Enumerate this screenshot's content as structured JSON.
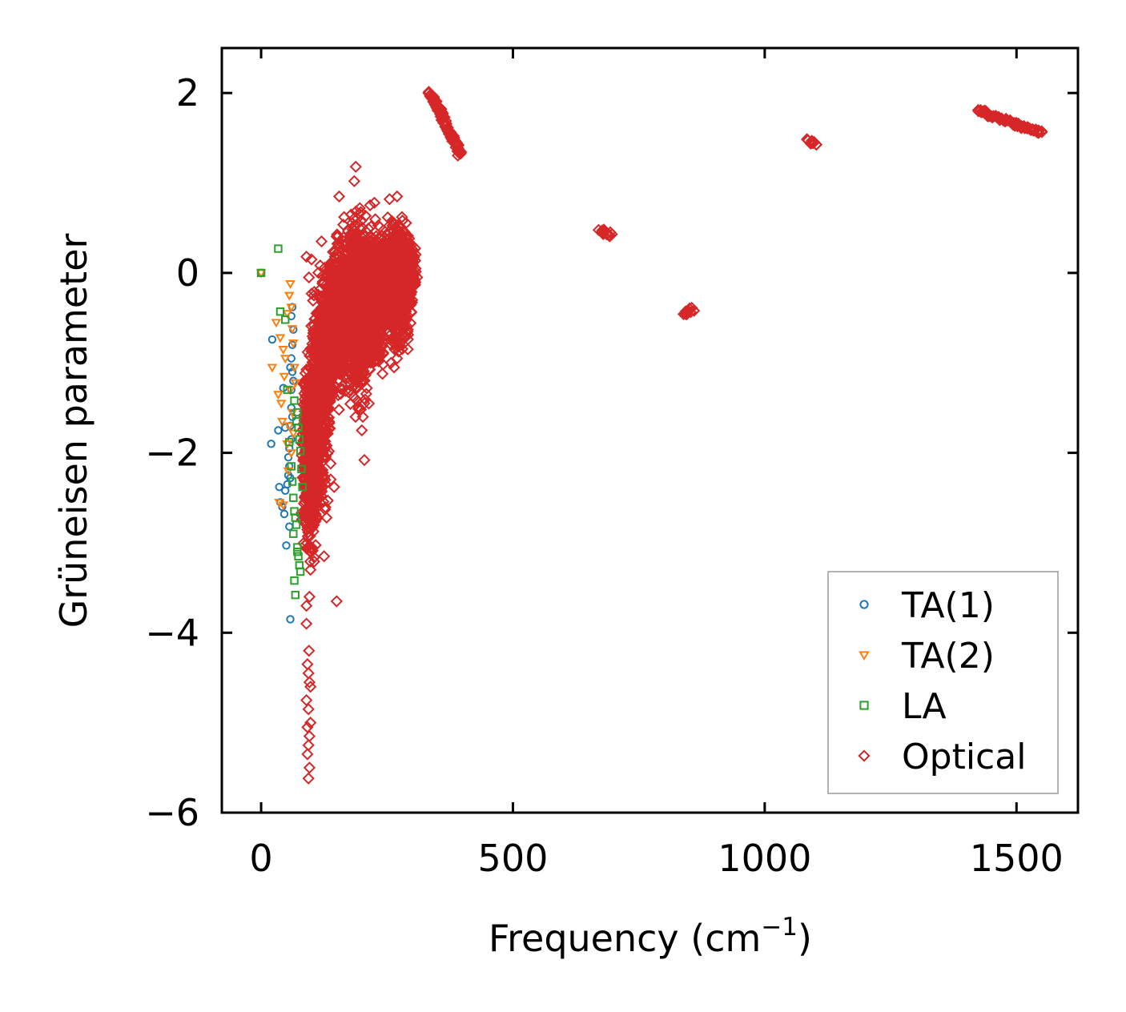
{
  "chart_data": {
    "type": "scatter",
    "title": "",
    "xlabel": "Frequency (cm",
    "xlabel_sup": "−1",
    "xlabel_end": ")",
    "ylabel": "Grüneisen parameter",
    "xlim": [
      -78,
      1622
    ],
    "ylim": [
      -6.0,
      2.5
    ],
    "x_ticks": [
      {
        "value": 0,
        "label": "0"
      },
      {
        "value": 500,
        "label": "500"
      },
      {
        "value": 1000,
        "label": "1000"
      },
      {
        "value": 1500,
        "label": "1500"
      }
    ],
    "y_ticks": [
      {
        "value": 2,
        "label": "2"
      },
      {
        "value": 0,
        "label": "0"
      },
      {
        "value": -2,
        "label": "−2"
      },
      {
        "value": -4,
        "label": "−4"
      },
      {
        "value": -6,
        "label": "−6"
      }
    ],
    "legend_position": "lower-right",
    "series": [
      {
        "name": "TA(1)",
        "marker": "circle",
        "color": "#1f77b4",
        "points": [
          [
            0,
            0.0
          ],
          [
            22,
            -0.74
          ],
          [
            20,
            -1.9
          ],
          [
            34,
            -1.75
          ],
          [
            36,
            -2.38
          ],
          [
            38,
            -2.55
          ],
          [
            42,
            -2.6
          ],
          [
            46,
            -2.68
          ],
          [
            48,
            -2.42
          ],
          [
            50,
            -3.03
          ],
          [
            52,
            -2.35
          ],
          [
            54,
            -2.25
          ],
          [
            56,
            -2.15
          ],
          [
            56,
            -1.95
          ],
          [
            58,
            -1.7
          ],
          [
            58,
            -3.85
          ],
          [
            60,
            -1.5
          ],
          [
            60,
            -1.3
          ],
          [
            62,
            -1.1
          ],
          [
            60,
            -0.95
          ],
          [
            62,
            -0.8
          ],
          [
            64,
            -0.63
          ],
          [
            62,
            -0.38
          ],
          [
            56,
            -2.82
          ],
          [
            44,
            -1.28
          ],
          [
            48,
            -1.72
          ],
          [
            54,
            -2.05
          ],
          [
            58,
            -2.28
          ],
          [
            60,
            -1.85
          ],
          [
            62,
            -1.6
          ],
          [
            64,
            -1.2
          ],
          [
            60,
            -0.48
          ],
          [
            58,
            -1.05
          ]
        ]
      },
      {
        "name": "TA(2)",
        "marker": "triangle-down",
        "color": "#ff7f0e",
        "points": [
          [
            0,
            0.0
          ],
          [
            22,
            -1.05
          ],
          [
            30,
            -0.55
          ],
          [
            34,
            -1.35
          ],
          [
            38,
            -0.72
          ],
          [
            40,
            -1.45
          ],
          [
            42,
            -1.65
          ],
          [
            44,
            -0.85
          ],
          [
            46,
            -1.15
          ],
          [
            48,
            -0.95
          ],
          [
            52,
            -0.45
          ],
          [
            56,
            -0.25
          ],
          [
            58,
            -0.12
          ],
          [
            60,
            -0.38
          ],
          [
            62,
            -0.62
          ],
          [
            64,
            -0.78
          ],
          [
            66,
            -1.05
          ],
          [
            68,
            -1.22
          ],
          [
            52,
            -1.9
          ],
          [
            56,
            -1.7
          ],
          [
            58,
            -1.3
          ],
          [
            62,
            -1.55
          ],
          [
            64,
            -1.78
          ],
          [
            60,
            -2.0
          ],
          [
            54,
            -2.2
          ],
          [
            44,
            -2.58
          ],
          [
            36,
            -2.55
          ]
        ]
      },
      {
        "name": "LA",
        "marker": "square",
        "color": "#2ca02c",
        "points": [
          [
            0,
            0.0
          ],
          [
            34,
            0.27
          ],
          [
            38,
            -0.43
          ],
          [
            48,
            -0.52
          ],
          [
            52,
            -1.3
          ],
          [
            56,
            -1.88
          ],
          [
            60,
            -2.15
          ],
          [
            62,
            -2.32
          ],
          [
            64,
            -2.5
          ],
          [
            66,
            -2.65
          ],
          [
            68,
            -2.72
          ],
          [
            70,
            -2.8
          ],
          [
            72,
            -3.05
          ],
          [
            74,
            -3.15
          ],
          [
            76,
            -3.25
          ],
          [
            78,
            -3.32
          ],
          [
            66,
            -3.42
          ],
          [
            68,
            -3.58
          ],
          [
            72,
            -1.55
          ],
          [
            74,
            -1.72
          ],
          [
            76,
            -1.85
          ],
          [
            78,
            -1.98
          ],
          [
            80,
            -2.18
          ],
          [
            82,
            -2.38
          ],
          [
            70,
            -1.65
          ],
          [
            66,
            -1.42
          ],
          [
            64,
            -2.9
          ],
          [
            72,
            -3.1
          ]
        ]
      },
      {
        "name": "Optical",
        "marker": "diamond",
        "color": "#d62728",
        "clusters": [
          {
            "x": [
              80,
              115
            ],
            "y": [
              -3.4,
              -0.7
            ],
            "n": 650,
            "seed": 11
          },
          {
            "x": [
              95,
              140
            ],
            "y": [
              -2.9,
              0.2
            ],
            "n": 550,
            "seed": 12
          },
          {
            "x": [
              120,
              175
            ],
            "y": [
              -1.6,
              0.6
            ],
            "n": 550,
            "seed": 13
          },
          {
            "x": [
              160,
              220
            ],
            "y": [
              -1.7,
              0.9
            ],
            "n": 900,
            "seed": 14
          },
          {
            "x": [
              195,
              250
            ],
            "y": [
              -1.2,
              0.7
            ],
            "n": 800,
            "seed": 15
          },
          {
            "x": [
              240,
              300
            ],
            "y": [
              -1.0,
              0.75
            ],
            "n": 800,
            "seed": 16
          },
          {
            "x": [
              260,
              310
            ],
            "y": [
              -0.5,
              0.5
            ],
            "n": 350,
            "seed": 17
          }
        ],
        "points": [
          [
            90,
            -3.9
          ],
          [
            92,
            -4.35
          ],
          [
            94,
            -4.45
          ],
          [
            96,
            -4.55
          ],
          [
            98,
            -4.6
          ],
          [
            90,
            -4.75
          ],
          [
            94,
            -4.85
          ],
          [
            92,
            -5.05
          ],
          [
            96,
            -5.15
          ],
          [
            94,
            -5.25
          ],
          [
            92,
            -5.35
          ],
          [
            96,
            -5.5
          ],
          [
            94,
            -5.62
          ],
          [
            98,
            -5.0
          ],
          [
            96,
            -3.6
          ],
          [
            90,
            -3.7
          ],
          [
            98,
            -3.3
          ],
          [
            95,
            -4.2
          ],
          [
            150,
            -3.65
          ],
          [
            205,
            -2.08
          ],
          [
            125,
            -3.15
          ],
          [
            145,
            -2.38
          ],
          [
            130,
            -2.72
          ],
          [
            188,
            1.18
          ],
          [
            155,
            0.85
          ],
          [
            185,
            1.02
          ],
          [
            196,
            0.72
          ],
          [
            270,
            0.85
          ],
          [
            255,
            0.82
          ],
          [
            225,
            0.78
          ],
          [
            90,
            0.18
          ],
          [
            100,
            0.15
          ],
          [
            120,
            0.35
          ],
          [
            200,
            -1.75
          ],
          [
            202,
            -1.6
          ],
          [
            205,
            -1.45
          ],
          [
            210,
            -1.28
          ],
          [
            198,
            -1.52
          ],
          [
            264,
            -1.05
          ],
          [
            270,
            -0.95
          ],
          [
            258,
            -1.0
          ],
          [
            285,
            -0.5
          ],
          [
            300,
            0.2
          ],
          [
            310,
            -0.05
          ],
          [
            95,
            -0.05
          ],
          [
            105,
            -0.25
          ],
          [
            110,
            -0.45
          ]
        ],
        "bands": [
          {
            "x0": 335,
            "x1": 395,
            "y0": 2.02,
            "y1": 1.32,
            "n": 90,
            "w": 9
          },
          {
            "x0": 672,
            "x1": 695,
            "y0": 0.48,
            "y1": 0.42,
            "n": 16,
            "w": 8
          },
          {
            "x0": 840,
            "x1": 858,
            "y0": -0.46,
            "y1": -0.4,
            "n": 10,
            "w": 5
          },
          {
            "x0": 1085,
            "x1": 1103,
            "y0": 1.48,
            "y1": 1.42,
            "n": 12,
            "w": 5
          },
          {
            "x0": 1425,
            "x1": 1550,
            "y0": 1.8,
            "y1": 1.55,
            "n": 70,
            "w": 5
          }
        ]
      }
    ]
  }
}
